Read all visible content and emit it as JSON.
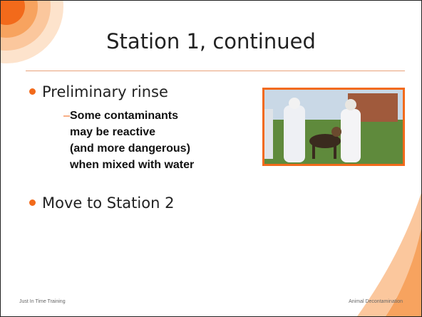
{
  "slide": {
    "title": "Station 1, continued",
    "bullets": [
      {
        "text": "Preliminary rinse",
        "sub": [
          {
            "lines": [
              "Some contaminants",
              "may be reactive",
              "(and more dangerous)",
              "when mixed with water"
            ]
          }
        ]
      },
      {
        "text": "Move to Station 2"
      }
    ],
    "footer": {
      "left": "Just In Time Training",
      "right": "Animal Decontamination"
    }
  }
}
